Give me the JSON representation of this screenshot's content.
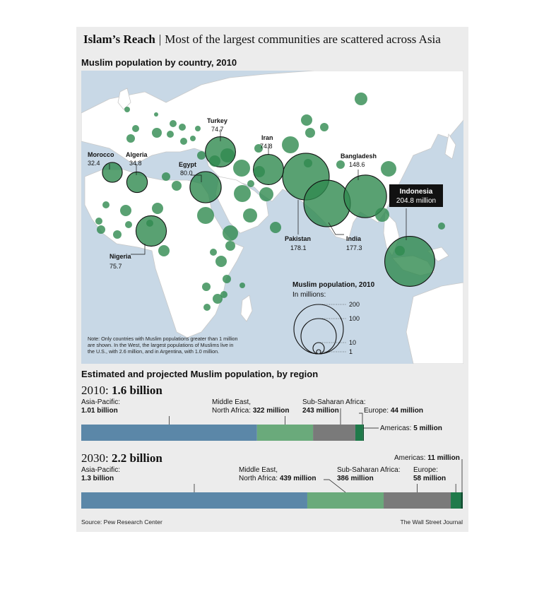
{
  "header": {
    "title": "Islam’s Reach",
    "separator": "|",
    "subtitle": "Most of the largest communities are scattered across Asia"
  },
  "map": {
    "title": "Muslim population by country, 2010",
    "note": [
      "Note: Only countries with Muslim populations greater than 1 million",
      "are shown. In the West, the largest populations of Muslims live in",
      "the U.S., with 2.6 million, and in Argentina, with 1.0 million."
    ],
    "labeled_countries": [
      {
        "name": "Turkey",
        "value": "74.7"
      },
      {
        "name": "Iran",
        "value": "74.8"
      },
      {
        "name": "Morocco",
        "value": "32.4"
      },
      {
        "name": "Algeria",
        "value": "34.8"
      },
      {
        "name": "Egypt",
        "value": "80.0"
      },
      {
        "name": "Bangladesh",
        "value": "148.6"
      },
      {
        "name": "Indonesia",
        "value": "204.8 million"
      },
      {
        "name": "Pakistan",
        "value": "178.1"
      },
      {
        "name": "India",
        "value": "177.3"
      },
      {
        "name": "Nigeria",
        "value": "75.7"
      }
    ],
    "legend": {
      "title": "Muslim population, 2010",
      "unit": "In millions:",
      "values": [
        "200",
        "100",
        "10",
        "1"
      ]
    }
  },
  "regions": {
    "title": "Estimated and projected Muslim population, by region"
  },
  "y2010": {
    "year": "2010:",
    "total": "1.6 billion"
  },
  "y2030": {
    "year": "2030:",
    "total": "2.2 billion"
  },
  "labels_2010": {
    "ap": "Asia-Pacific:",
    "ap_v": "1.01 billion",
    "me1": "Middle East,",
    "me2": "North Africa:",
    "me_v": "322 million",
    "ssa": "Sub-Saharan Africa:",
    "ssa_v": "243 million",
    "eu": "Europe:",
    "eu_v": "44 million",
    "am": "Americas:",
    "am_v": "5 million"
  },
  "labels_2030": {
    "ap": "Asia-Pacific:",
    "ap_v": "1.3 billion",
    "me1": "Middle East,",
    "me2": "North Africa:",
    "me_v": "439 million",
    "ssa": "Sub-Saharan Africa:",
    "ssa_v": "386 million",
    "eu": "Europe:",
    "eu_v": "58 million",
    "am": "Americas:",
    "am_v": "11 million"
  },
  "footer": {
    "source": "Source: Pew Research Center",
    "credit": "The Wall Street Journal"
  },
  "colors": {
    "asia_pacific": "#5b87a8",
    "mena": "#6aaa7b",
    "ssa": "#7a7a7a",
    "europe": "#1f7a4a",
    "americas": "#0b4a2c",
    "bubble": "#2f8a4f",
    "ocean": "#c8d8e6",
    "land": "#ffffff"
  },
  "chart_data": [
    {
      "type": "bar",
      "title": "2010: 1.6 billion",
      "orientation": "stacked-horizontal",
      "categories": [
        "Asia-Pacific",
        "Middle East, North Africa",
        "Sub-Saharan Africa",
        "Europe",
        "Americas"
      ],
      "values": [
        1010,
        322,
        243,
        44,
        5
      ],
      "unit": "millions"
    },
    {
      "type": "bar",
      "title": "2030: 2.2 billion",
      "orientation": "stacked-horizontal",
      "categories": [
        "Asia-Pacific",
        "Middle East, North Africa",
        "Sub-Saharan Africa",
        "Europe",
        "Americas"
      ],
      "values": [
        1300,
        439,
        386,
        58,
        11
      ],
      "unit": "millions"
    },
    {
      "type": "scatter",
      "title": "Muslim population by country, 2010",
      "size_unit": "millions",
      "points": [
        {
          "country": "Indonesia",
          "value": 204.8
        },
        {
          "country": "Pakistan",
          "value": 178.1
        },
        {
          "country": "India",
          "value": 177.3
        },
        {
          "country": "Bangladesh",
          "value": 148.6
        },
        {
          "country": "Egypt",
          "value": 80.0
        },
        {
          "country": "Nigeria",
          "value": 75.7
        },
        {
          "country": "Iran",
          "value": 74.8
        },
        {
          "country": "Turkey",
          "value": 74.7
        },
        {
          "country": "Algeria",
          "value": 34.8
        },
        {
          "country": "Morocco",
          "value": 32.4
        }
      ]
    }
  ]
}
